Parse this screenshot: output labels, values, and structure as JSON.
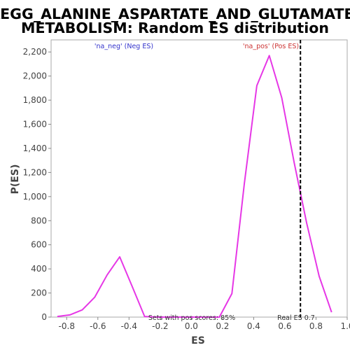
{
  "chart_data": {
    "type": "line",
    "title_lines": [
      "KEGG_ALANINE_ASPARTATE_AND_GLUTAMATE_",
      "METABOLISM: Random ES distribution"
    ],
    "xlabel": "ES",
    "ylabel": "P(ES)",
    "xlim": [
      -0.9,
      1.0
    ],
    "ylim": [
      0,
      2300
    ],
    "xticks": [
      -0.8,
      -0.6,
      -0.4,
      -0.2,
      0.0,
      0.2,
      0.4,
      0.6,
      0.8,
      1.0
    ],
    "xtick_labels": [
      "-0.8",
      "-0.6",
      "-0.4",
      "-0.2",
      "0.0",
      "0.2",
      "0.4",
      "0.6",
      "0.8",
      "1.0"
    ],
    "yticks": [
      0,
      200,
      400,
      600,
      800,
      1000,
      1200,
      1400,
      1600,
      1800,
      2000,
      2200
    ],
    "ytick_labels": [
      "0",
      "200",
      "400",
      "600",
      "800",
      "1,000",
      "1,200",
      "1,400",
      "1,600",
      "1,800",
      "2,000",
      "2,200"
    ],
    "grid": false,
    "series": [
      {
        "color": "#e637e6",
        "x": [
          -0.86,
          -0.78,
          -0.7,
          -0.62,
          -0.54,
          -0.46,
          -0.38,
          -0.3,
          -0.22,
          -0.14,
          -0.06,
          0.02,
          0.1,
          0.18,
          0.26,
          0.34,
          0.42,
          0.5,
          0.58,
          0.66,
          0.74,
          0.82,
          0.9
        ],
        "y": [
          5,
          18,
          60,
          165,
          350,
          500,
          255,
          5,
          0,
          0,
          0,
          0,
          0,
          0,
          195,
          1110,
          1920,
          2170,
          1820,
          1280,
          780,
          340,
          40
        ]
      }
    ],
    "real_es": 0.7,
    "annotations": {
      "neg_label": "'na_neg' (Neg ES)",
      "neg_color": "#3333cc",
      "pos_label": "'na_pos' (Pos ES)",
      "pos_color": "#cc3333",
      "sets_label": "Sets with pos scores: 85%",
      "real_es_label": "Real ES 0.7"
    }
  }
}
